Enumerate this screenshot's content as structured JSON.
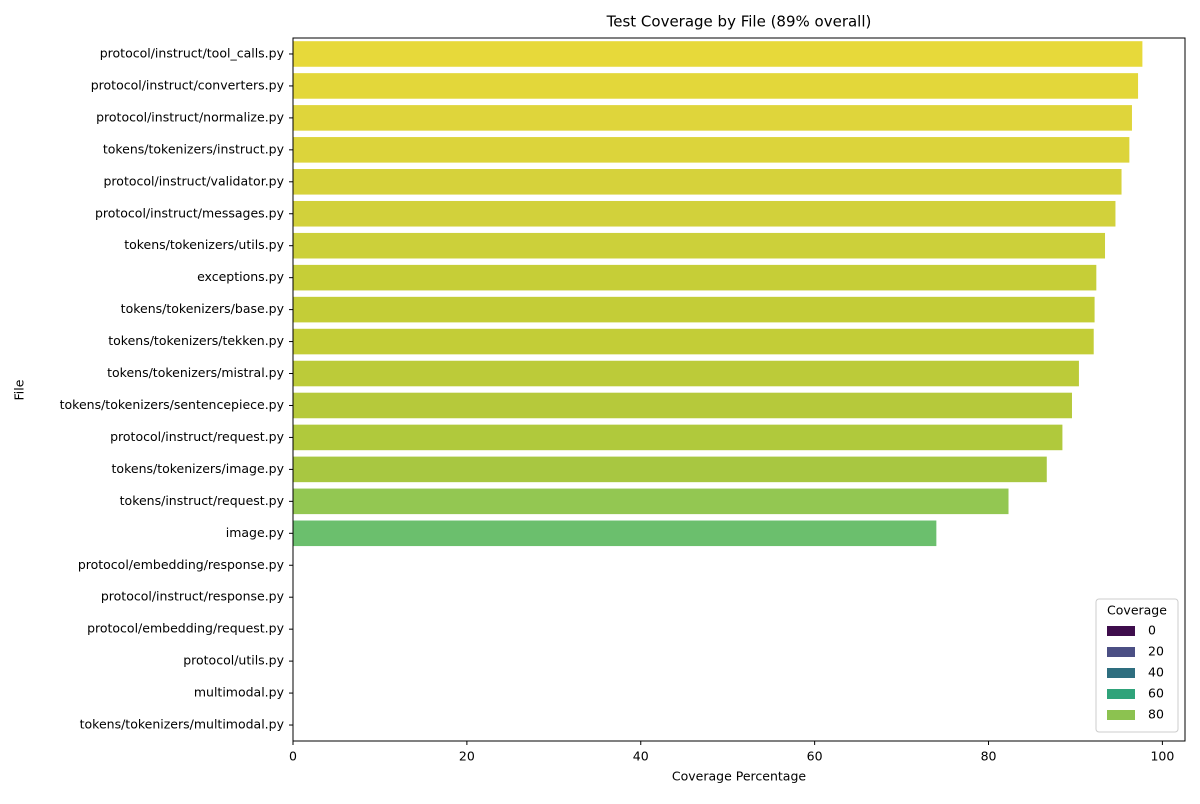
{
  "chart_data": {
    "type": "hbar",
    "title": "Test Coverage by File (89% overall)",
    "x_label": "Coverage Percentage",
    "y_label": "File",
    "categories": [
      "protocol/instruct/tool_calls.py",
      "protocol/instruct/converters.py",
      "protocol/instruct/normalize.py",
      "tokens/tokenizers/instruct.py",
      "protocol/instruct/validator.py",
      "protocol/instruct/messages.py",
      "tokens/tokenizers/utils.py",
      "exceptions.py",
      "tokens/tokenizers/base.py",
      "tokens/tokenizers/tekken.py",
      "tokens/tokenizers/mistral.py",
      "tokens/tokenizers/sentencepiece.py",
      "protocol/instruct/request.py",
      "tokens/tokenizers/image.py",
      "tokens/instruct/request.py",
      "image.py",
      "protocol/embedding/response.py",
      "protocol/instruct/response.py",
      "protocol/embedding/request.py",
      "protocol/utils.py",
      "multimodal.py",
      "tokens/tokenizers/multimodal.py"
    ],
    "values": [
      97.7,
      97.2,
      96.5,
      96.2,
      95.3,
      94.6,
      93.4,
      92.4,
      92.2,
      92.1,
      90.4,
      89.6,
      88.5,
      86.7,
      82.3,
      74.0,
      0,
      0,
      0,
      0,
      0,
      0
    ],
    "colors": [
      "#e7d93a",
      "#e3d73a",
      "#dfd53b",
      "#dcd43b",
      "#d6d23b",
      "#d2d13b",
      "#ccd03a",
      "#c6ce37",
      "#c4cd37",
      "#c3cd37",
      "#bccb39",
      "#b6c93b",
      "#b0c93c",
      "#a8c741",
      "#93c752",
      "#6bbf6d",
      null,
      null,
      null,
      null,
      null,
      null
    ],
    "xlim": [
      0,
      102.6
    ],
    "xticks": [
      0,
      20,
      40,
      60,
      80,
      100
    ],
    "legend": {
      "title": "Coverage",
      "position": "lower right",
      "entries": [
        {
          "label": 0,
          "color": "#3e0d4c"
        },
        {
          "label": 20,
          "color": "#4b4f84"
        },
        {
          "label": 40,
          "color": "#2e6e7f"
        },
        {
          "label": 60,
          "color": "#2fa37a"
        },
        {
          "label": 80,
          "color": "#8cc250"
        }
      ]
    }
  }
}
